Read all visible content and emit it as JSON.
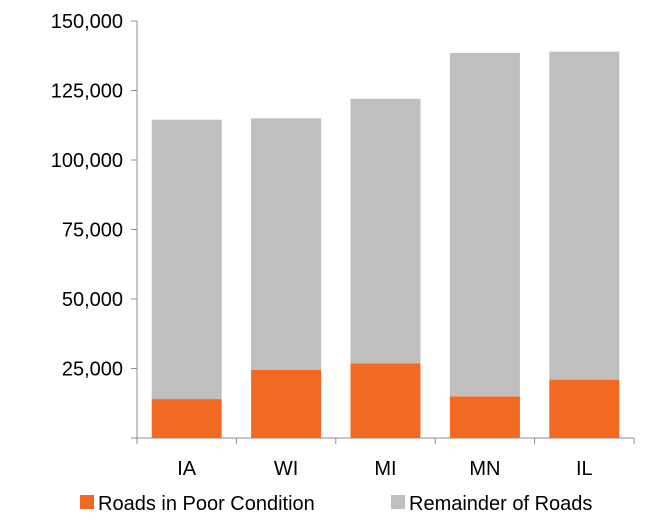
{
  "chart_data": {
    "type": "bar",
    "stacked": true,
    "categories": [
      "IA",
      "WI",
      "MI",
      "MN",
      "IL"
    ],
    "series": [
      {
        "name": "Roads in Poor Condition",
        "values": [
          14000,
          24500,
          26800,
          15000,
          21000
        ],
        "color": "#f26a21"
      },
      {
        "name": "Remainder of Roads",
        "values": [
          100500,
          90500,
          95200,
          123500,
          118000
        ],
        "color": "#bfbfbf"
      }
    ],
    "totals": [
      114500,
      115000,
      122000,
      138500,
      139000
    ],
    "ylim": [
      0,
      150000
    ],
    "yticks": [
      25000,
      50000,
      75000,
      100000,
      125000,
      150000
    ],
    "ytick_labels": [
      "25,000",
      "50,000",
      "75,000",
      "100,000",
      "125,000",
      "150,000"
    ],
    "grid": false,
    "legend_position": "bottom"
  }
}
